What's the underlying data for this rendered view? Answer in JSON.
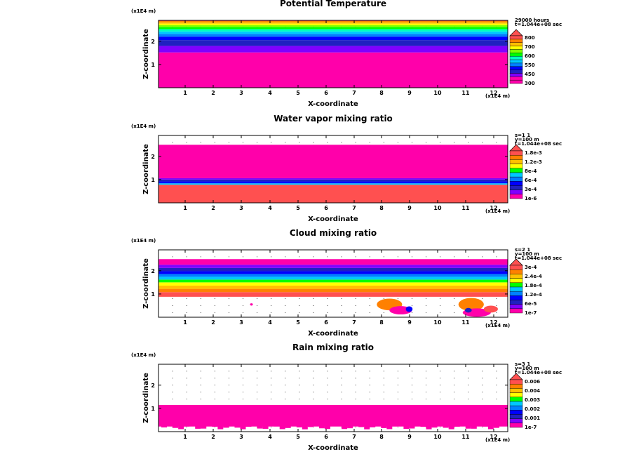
{
  "chart_data": [
    {
      "type": "heatmap",
      "title": "Potential Temperature",
      "xlabel": "X-coordinate",
      "ylabel": "Z-coordinate",
      "x_unit": "(x1E4 m)",
      "z_unit": "(x1E4 m)",
      "xlim": [
        0,
        12.4
      ],
      "zlim": [
        0,
        2.9
      ],
      "xticks": [
        "1",
        "2",
        "3",
        "4",
        "5",
        "6",
        "7",
        "8",
        "9",
        "10",
        "11",
        "12"
      ],
      "zticks": [
        "1",
        "2"
      ],
      "info": [
        "29000 hours",
        "t=1.044e+08 sec"
      ],
      "legend_levels": [
        "800",
        "700",
        "600",
        "550",
        "450",
        "300"
      ],
      "colors": [
        "#ff00aa",
        "#ff00aa",
        "#8000ff",
        "#2020c0",
        "#0000ff",
        "#0080ff",
        "#00c8ff",
        "#00ffc0",
        "#00ff00",
        "#80ff00",
        "#ffff00",
        "#ffc000",
        "#ff8000",
        "#ff5050"
      ],
      "bands": [
        {
          "z0": 0,
          "z1": 1.52,
          "color": "#ff00aa"
        },
        {
          "z0": 1.52,
          "z1": 1.8,
          "color": "#8000ff"
        },
        {
          "z0": 1.8,
          "z1": 2.05,
          "color": "#2020c0"
        },
        {
          "z0": 2.05,
          "z1": 2.2,
          "color": "#0000ff"
        },
        {
          "z0": 2.2,
          "z1": 2.32,
          "color": "#0080ff"
        },
        {
          "z0": 2.32,
          "z1": 2.42,
          "color": "#00c8ff"
        },
        {
          "z0": 2.42,
          "z1": 2.52,
          "color": "#00ffc0"
        },
        {
          "z0": 2.52,
          "z1": 2.61,
          "color": "#00ff00"
        },
        {
          "z0": 2.61,
          "z1": 2.69,
          "color": "#80ff00"
        },
        {
          "z0": 2.69,
          "z1": 2.76,
          "color": "#ffff00"
        },
        {
          "z0": 2.76,
          "z1": 2.82,
          "color": "#ffc000"
        },
        {
          "z0": 2.82,
          "z1": 2.87,
          "color": "#ff8000"
        },
        {
          "z0": 2.87,
          "z1": 2.9,
          "color": "#ff5050"
        }
      ],
      "blobs": []
    },
    {
      "type": "heatmap",
      "title": "Water vapor mixing ratio",
      "xlabel": "X-coordinate",
      "ylabel": "Z-coordinate",
      "x_unit": "(x1E4 m)",
      "z_unit": "(x1E4 m)",
      "xlim": [
        0,
        12.4
      ],
      "zlim": [
        0,
        2.9
      ],
      "xticks": [
        "1",
        "2",
        "3",
        "4",
        "5",
        "6",
        "7",
        "8",
        "9",
        "10",
        "11",
        "12"
      ],
      "zticks": [
        "1",
        "2"
      ],
      "info": [
        "s=1 1",
        "y=100 m",
        "t=1.044e+08 sec"
      ],
      "legend_levels": [
        "1.8e-3",
        "1.2e-3",
        "8e-4",
        "6e-4",
        "3e-4",
        "1e-6"
      ],
      "colors": [
        "#ff00aa",
        "#8000ff",
        "#2020c0",
        "#0000ff",
        "#0080ff",
        "#00c8ff",
        "#00ff00",
        "#ffff00",
        "#ffc000",
        "#ff8000",
        "#ff5050"
      ],
      "bands": [
        {
          "z0": 0,
          "z1": 0.78,
          "color": "#ff5050"
        },
        {
          "z0": 0.78,
          "z1": 0.84,
          "color": "#00c8ff"
        },
        {
          "z0": 0.84,
          "z1": 0.92,
          "color": "#0000ff"
        },
        {
          "z0": 0.92,
          "z1": 1.0,
          "color": "#2020c0"
        },
        {
          "z0": 1.0,
          "z1": 1.06,
          "color": "#8000ff"
        },
        {
          "z0": 1.06,
          "z1": 2.5,
          "color": "#ff00aa"
        }
      ],
      "blobs": []
    },
    {
      "type": "heatmap",
      "title": "Cloud mixing ratio",
      "xlabel": "X-coordinate",
      "ylabel": "Z-coordinate",
      "x_unit": "(x1E4 m)",
      "z_unit": "(x1E4 m)",
      "xlim": [
        0,
        12.4
      ],
      "zlim": [
        0,
        2.9
      ],
      "xticks": [
        "1",
        "2",
        "3",
        "4",
        "5",
        "6",
        "7",
        "8",
        "9",
        "10",
        "11",
        "12"
      ],
      "zticks": [
        "1",
        "2"
      ],
      "info": [
        "s=2 1",
        "y=100 m",
        "t=1.044e+08 sec"
      ],
      "legend_levels": [
        "3e-4",
        "2.4e-4",
        "1.8e-4",
        "1.2e-4",
        "6e-5",
        "1e-7"
      ],
      "colors": [
        "#ff00aa",
        "#8000ff",
        "#2020c0",
        "#0000ff",
        "#0080ff",
        "#00c8ff",
        "#00ff00",
        "#ffff00",
        "#ffc000",
        "#ff8000",
        "#ff5050"
      ],
      "bands": [
        {
          "z0": 0.88,
          "z1": 1.08,
          "color": "#ff5050"
        },
        {
          "z0": 1.08,
          "z1": 1.22,
          "color": "#ff8000"
        },
        {
          "z0": 1.22,
          "z1": 1.36,
          "color": "#ffc000"
        },
        {
          "z0": 1.36,
          "z1": 1.5,
          "color": "#ffff00"
        },
        {
          "z0": 1.5,
          "z1": 1.62,
          "color": "#00ff00"
        },
        {
          "z0": 1.62,
          "z1": 1.74,
          "color": "#00c8ff"
        },
        {
          "z0": 1.74,
          "z1": 1.86,
          "color": "#0080ff"
        },
        {
          "z0": 1.86,
          "z1": 1.98,
          "color": "#0000ff"
        },
        {
          "z0": 1.98,
          "z1": 2.12,
          "color": "#2020c0"
        },
        {
          "z0": 2.12,
          "z1": 2.26,
          "color": "#8000ff"
        },
        {
          "z0": 2.26,
          "z1": 2.5,
          "color": "#ff00aa"
        }
      ],
      "blobs": [
        {
          "x": 8.2,
          "z": 0.55,
          "rx": 0.45,
          "rz": 0.25,
          "color": "#ff8000"
        },
        {
          "x": 8.6,
          "z": 0.3,
          "rx": 0.4,
          "rz": 0.18,
          "color": "#ff00aa"
        },
        {
          "x": 8.9,
          "z": 0.35,
          "rx": 0.12,
          "rz": 0.12,
          "color": "#0000ff"
        },
        {
          "x": 11.1,
          "z": 0.55,
          "rx": 0.45,
          "rz": 0.28,
          "color": "#ff8000"
        },
        {
          "x": 11.3,
          "z": 0.2,
          "rx": 0.5,
          "rz": 0.18,
          "color": "#ff00aa"
        },
        {
          "x": 11.0,
          "z": 0.3,
          "rx": 0.12,
          "rz": 0.1,
          "color": "#2020c0"
        },
        {
          "x": 11.8,
          "z": 0.35,
          "rx": 0.25,
          "rz": 0.15,
          "color": "#ff5050"
        },
        {
          "x": 3.3,
          "z": 0.55,
          "rx": 0.05,
          "rz": 0.05,
          "color": "#ff00aa"
        }
      ]
    },
    {
      "type": "heatmap",
      "title": "Rain mixing ratio",
      "xlabel": "X-coordinate",
      "ylabel": "Z-coordinate",
      "x_unit": "(x1E4 m)",
      "z_unit": "(x1E4 m)",
      "xlim": [
        0,
        12.4
      ],
      "zlim": [
        0,
        2.9
      ],
      "xticks": [
        "1",
        "2",
        "3",
        "4",
        "5",
        "6",
        "7",
        "8",
        "9",
        "10",
        "11",
        "12"
      ],
      "zticks": [
        "1",
        "2"
      ],
      "info": [
        "s=3 1",
        "y=100 m",
        "t=1.044e+08 sec"
      ],
      "legend_levels": [
        "0.006",
        "0.004",
        "0.003",
        "0.002",
        "0.001",
        "1e-7"
      ],
      "colors": [
        "#ff00aa",
        "#8000ff",
        "#2020c0",
        "#0000ff",
        "#0080ff",
        "#00c8ff",
        "#00ff00",
        "#ffff00",
        "#ffc000",
        "#ff8000",
        "#ff5050"
      ],
      "bands": [
        {
          "z0": 0.22,
          "z1": 1.15,
          "color": "#ff00aa"
        }
      ],
      "blobs": []
    }
  ]
}
